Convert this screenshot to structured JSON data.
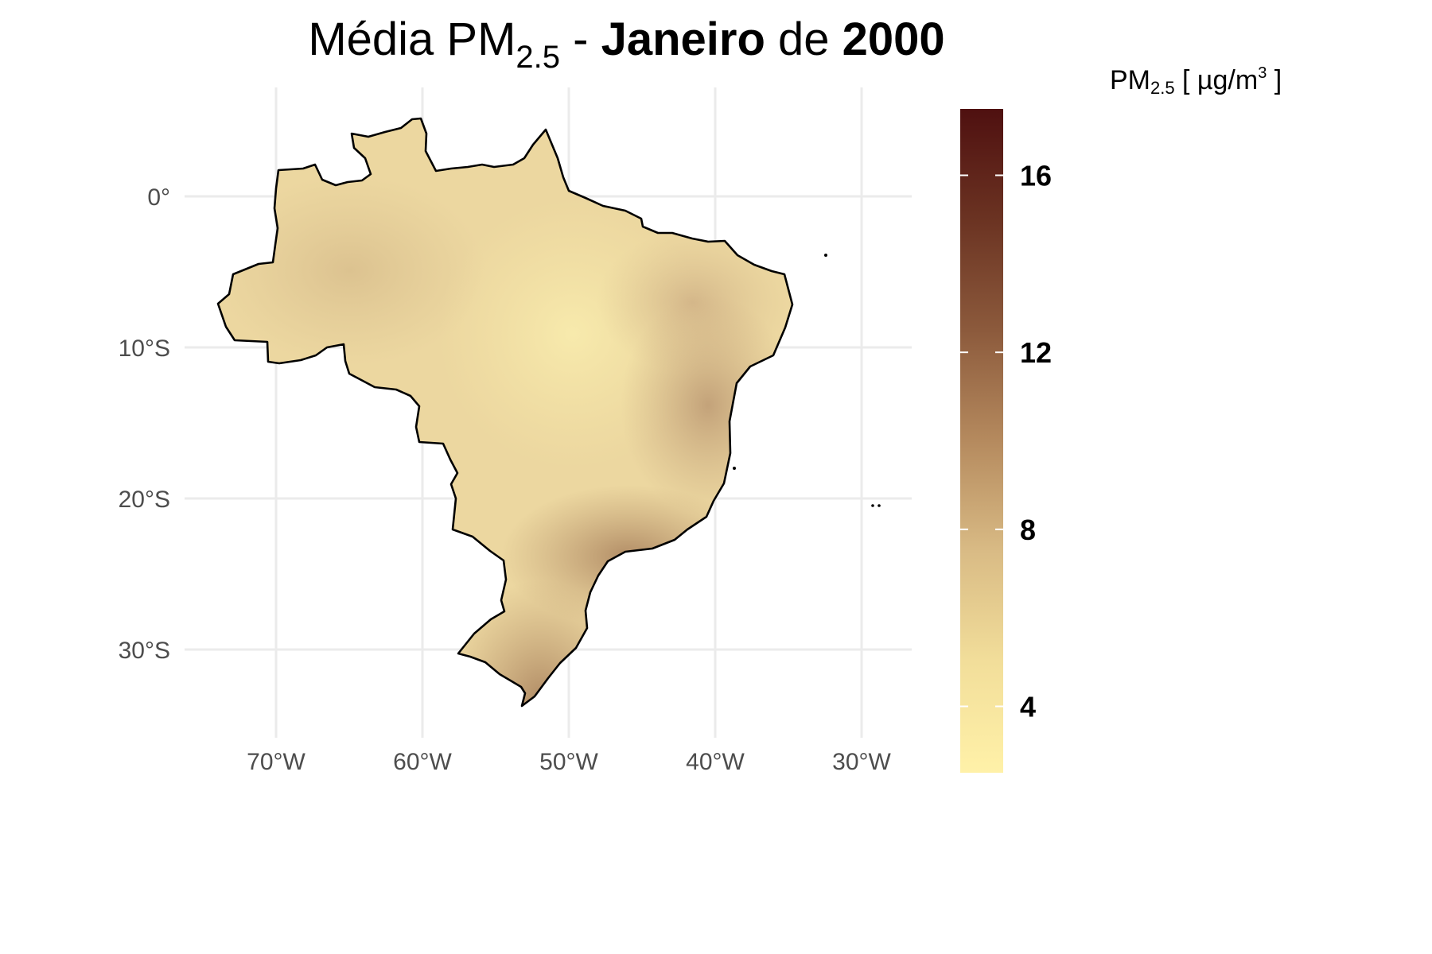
{
  "title": {
    "prefix": "Média PM",
    "subscript": "2.5",
    "dash": " - ",
    "month": "Janeiro",
    "connector": " de ",
    "year": "2000"
  },
  "legend": {
    "title_prefix": "PM",
    "title_subscript": "2.5",
    "title_unit_open": " [ µg/m",
    "title_unit_sup": "3",
    "title_unit_close": " ]",
    "min": 2.5,
    "max": 17.5,
    "breaks": [
      {
        "value": 4,
        "label": "4"
      },
      {
        "value": 8,
        "label": "8"
      },
      {
        "value": 12,
        "label": "12"
      },
      {
        "value": 16,
        "label": "16"
      }
    ],
    "colors": [
      "#fff1a8",
      "#f2de9a",
      "#d9bb85",
      "#b58a5e",
      "#8c5a3c",
      "#6b3322",
      "#4f1010"
    ]
  },
  "axes": {
    "lon_ticks": [
      {
        "value": -70,
        "label": "70°W"
      },
      {
        "value": -60,
        "label": "60°W"
      },
      {
        "value": -50,
        "label": "50°W"
      },
      {
        "value": -40,
        "label": "40°W"
      },
      {
        "value": -30,
        "label": "30°W"
      }
    ],
    "lat_ticks": [
      {
        "value": 0,
        "label": "0°"
      },
      {
        "value": -10,
        "label": "10°S"
      },
      {
        "value": -20,
        "label": "20°S"
      },
      {
        "value": -30,
        "label": "30°S"
      }
    ],
    "lon_range": [
      -76,
      -27
    ],
    "lat_range": [
      -35.3,
      6.5
    ],
    "grid": true
  },
  "map": {
    "region": "Brazil",
    "base_fill": "#ecd7a0",
    "outline_color": "#000000",
    "grid_color": "#ebebeb",
    "regions": [
      {
        "name": "northwest",
        "value": 6.3
      },
      {
        "name": "central-north",
        "value": 4.5
      },
      {
        "name": "northeast-interior",
        "value": 6.5
      },
      {
        "name": "east-coast",
        "value": 8.0
      },
      {
        "name": "southeast",
        "value": 9.0
      },
      {
        "name": "south",
        "value": 10.5
      }
    ]
  }
}
